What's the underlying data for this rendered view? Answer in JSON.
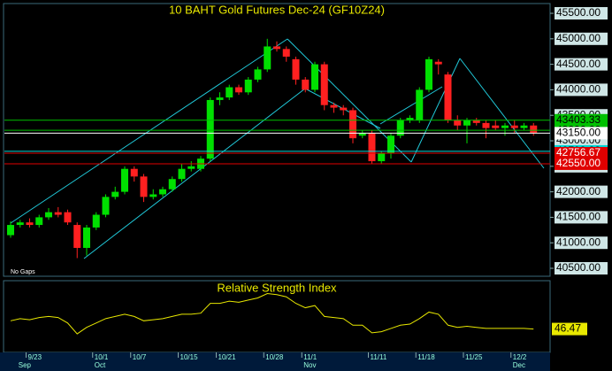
{
  "chart_data": [
    {
      "type": "candlestick",
      "title": "10 BAHT Gold Futures Dec-24 (GF10Z24)",
      "annotation": "No Gaps",
      "open": [
        41150,
        41350,
        41400,
        41350,
        41500,
        41600,
        41600,
        41350,
        40900,
        41300,
        41550,
        41900,
        42000,
        42450,
        42300,
        41900,
        41950,
        42050,
        42250,
        42450,
        42450,
        42650,
        43800,
        43850,
        44050,
        43950,
        44200,
        44400,
        44850,
        44800,
        44600,
        44200,
        44000,
        44500,
        43700,
        43650,
        43600,
        43100,
        43150,
        42600,
        42750,
        43100,
        43400,
        43400,
        44000,
        44550,
        44300,
        43400,
        43300,
        43400,
        43350,
        43300,
        43250,
        43300,
        43250,
        43300
      ],
      "close": [
        41350,
        41400,
        41350,
        41500,
        41600,
        41550,
        41400,
        40900,
        41300,
        41550,
        41900,
        42000,
        42450,
        42300,
        41900,
        41950,
        42050,
        42250,
        42450,
        42500,
        42650,
        43800,
        43850,
        44050,
        43950,
        44200,
        44400,
        44850,
        44800,
        44650,
        44200,
        44000,
        44500,
        43700,
        43650,
        43600,
        43050,
        43150,
        42600,
        42750,
        43100,
        43400,
        43450,
        44000,
        44600,
        44500,
        43400,
        43300,
        43400,
        43350,
        43250,
        43250,
        43300,
        43250,
        43300,
        43150
      ],
      "high": [
        41420,
        41450,
        41480,
        41550,
        41680,
        41700,
        41650,
        41400,
        41350,
        41600,
        41950,
        42100,
        42500,
        42500,
        42350,
        42050,
        42100,
        42300,
        42550,
        42600,
        42700,
        43850,
        43950,
        44100,
        44100,
        44250,
        44450,
        45000,
        44950,
        44850,
        44650,
        44250,
        44550,
        44550,
        43750,
        43700,
        43650,
        43200,
        43200,
        42800,
        43150,
        43450,
        43500,
        44050,
        44650,
        44600,
        44350,
        43500,
        43450,
        43450,
        43400,
        43400,
        43350,
        43400,
        43350,
        43350
      ],
      "low": [
        41100,
        41300,
        41300,
        41300,
        41450,
        41500,
        41350,
        40700,
        40750,
        41250,
        41500,
        41850,
        41950,
        42200,
        41800,
        41850,
        41900,
        42000,
        42200,
        42400,
        42400,
        42600,
        43700,
        43800,
        43900,
        43900,
        44150,
        44350,
        44750,
        44550,
        44100,
        43950,
        43950,
        43600,
        43550,
        43500,
        42950,
        43050,
        42550,
        42550,
        42650,
        43050,
        43350,
        43350,
        43950,
        44300,
        43350,
        43200,
        42950,
        43300,
        43050,
        43200,
        43100,
        43150,
        43200,
        43100
      ],
      "up_color": "#00e000",
      "down_color": "#ff2020",
      "ylim": [
        40344,
        45674
      ],
      "yticks": [
        {
          "value": 40500,
          "label": "40500.00"
        },
        {
          "value": 41000,
          "label": "41000.00"
        },
        {
          "value": 41500,
          "label": "41500.00"
        },
        {
          "value": 42000,
          "label": "42000.00"
        },
        {
          "value": 42500,
          "label": "42500.00"
        },
        {
          "value": 43000,
          "label": "43000.00"
        },
        {
          "value": 43500,
          "label": "43500.00"
        },
        {
          "value": 44000,
          "label": "44000.00"
        },
        {
          "value": 44500,
          "label": "44500.00"
        },
        {
          "value": 45000,
          "label": "45000.00"
        },
        {
          "value": 45500,
          "label": "45500.00"
        }
      ],
      "levels": [
        {
          "value": 43403.33,
          "label": "43403.33",
          "color": "#00c000"
        },
        {
          "value": 43206.66,
          "label": "43206.66",
          "color": "#00c000"
        },
        {
          "value": 43150,
          "label": "43150.00",
          "color": "#ffffff"
        },
        {
          "value": 42793.33,
          "label": "42793.33",
          "color": "#00d8d8"
        },
        {
          "value": 42756.67,
          "label": "42756.67",
          "color": "#e00000"
        },
        {
          "value": 42550,
          "label": "42550.00",
          "color": "#e00000"
        }
      ]
    },
    {
      "type": "line",
      "title": "Relative Strength Index",
      "color": "#e8e800",
      "categories": [
        null,
        null,
        "9/23",
        null,
        null,
        null,
        null,
        null,
        null,
        "10/1",
        null,
        null,
        null,
        "10/7",
        null,
        null,
        null,
        null,
        "10/15",
        null,
        null,
        null,
        "10/21",
        null,
        null,
        null,
        null,
        "10/28",
        null,
        null,
        null,
        "11/1",
        null,
        null,
        null,
        null,
        null,
        null,
        "11/11",
        null,
        null,
        null,
        null,
        "11/18",
        null,
        null,
        null,
        null,
        "11/25",
        null,
        null,
        null,
        null,
        "12/2",
        null,
        null
      ],
      "months": [
        null,
        "Sep",
        null,
        null,
        null,
        null,
        null,
        null,
        null,
        "Oct",
        null,
        null,
        null,
        null,
        null,
        null,
        null,
        null,
        null,
        null,
        null,
        null,
        null,
        null,
        null,
        null,
        null,
        null,
        null,
        null,
        null,
        "Nov",
        null,
        null,
        null,
        null,
        null,
        null,
        null,
        null,
        null,
        null,
        null,
        null,
        null,
        null,
        null,
        null,
        null,
        null,
        null,
        null,
        null,
        "Dec",
        null,
        null
      ],
      "values": [
        54,
        56,
        55,
        57,
        58,
        57,
        52,
        42,
        48,
        52,
        56,
        58,
        60,
        58,
        54,
        55,
        56,
        58,
        60,
        60,
        61,
        70,
        70,
        72,
        71,
        73,
        75,
        79,
        78,
        76,
        70,
        66,
        68,
        58,
        57,
        56,
        50,
        50,
        43,
        44,
        47,
        50,
        51,
        56,
        62,
        60,
        50,
        48,
        49,
        48,
        47,
        47,
        47,
        47,
        47,
        46.47
      ],
      "value_labels": [
        null,
        null,
        null,
        null,
        null,
        null,
        null,
        null,
        null,
        null,
        null,
        null,
        null,
        null,
        null,
        null,
        null,
        null,
        null,
        null,
        null,
        null,
        null,
        null,
        null,
        null,
        null,
        null,
        null,
        null,
        null,
        null,
        null,
        null,
        null,
        null,
        null,
        null,
        null,
        null,
        null,
        null,
        null,
        null,
        null,
        null,
        null,
        null,
        null,
        null,
        null,
        null,
        null,
        null,
        null,
        "46.47"
      ],
      "ylim": [
        25,
        90
      ]
    }
  ]
}
